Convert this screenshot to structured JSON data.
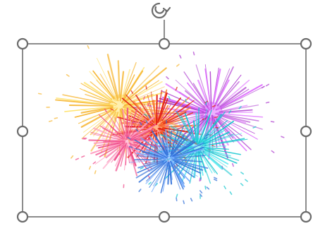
{
  "selection": {
    "object": "fireworks-image",
    "handles": [
      "top-left",
      "top-center",
      "top-right",
      "middle-left",
      "middle-right",
      "bottom-left",
      "bottom-center",
      "bottom-right"
    ],
    "rotation_handle_icon": "rotate-icon",
    "frame_color": "#6f6f6f"
  },
  "image": {
    "description_icon": "fireworks-burst",
    "bursts": [
      {
        "color": "#f7b733",
        "color2": "#ffe36e"
      },
      {
        "color": "#b040d0",
        "color2": "#e070ff"
      },
      {
        "color": "#e32010",
        "color2": "#ff7a30"
      },
      {
        "color": "#18c8d0",
        "color2": "#40e8f0"
      },
      {
        "color": "#f04a8a",
        "color2": "#ff9ac0"
      },
      {
        "color": "#2f6fd8",
        "color2": "#6ea8ff"
      }
    ]
  }
}
